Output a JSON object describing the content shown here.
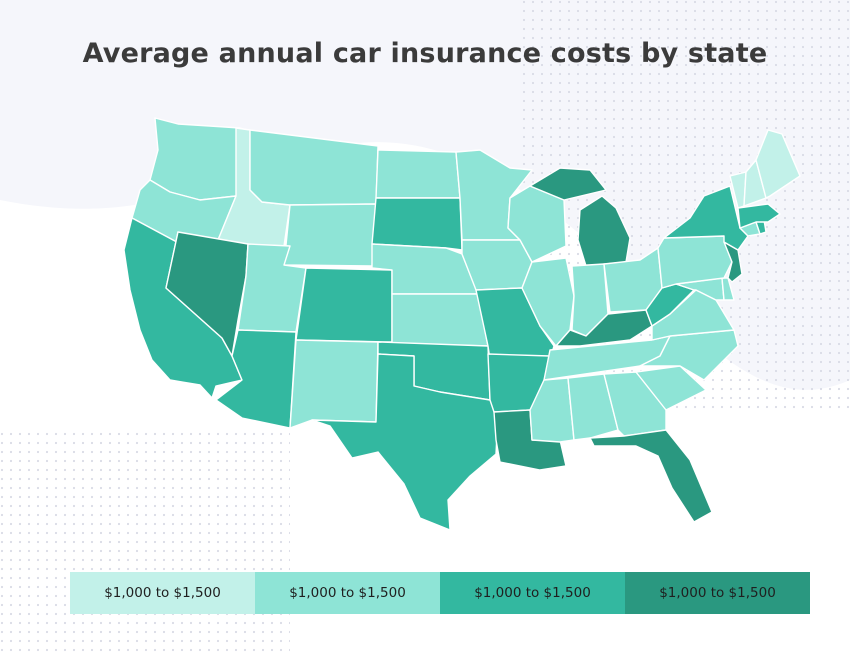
{
  "title": "Average annual car insurance costs by state",
  "colors": {
    "tier1": "#c2f1e9",
    "tier2": "#8ee4d6",
    "tier3": "#33b8a0",
    "tier4": "#2a9880",
    "background_dots": "#d9dbe6",
    "background_blob": "#f5f6fb"
  },
  "legend": [
    {
      "label": "$1,000 to $1,500",
      "color": "#c2f1e9"
    },
    {
      "label": "$1,000 to $1,500",
      "color": "#8ee4d6"
    },
    {
      "label": "$1,000 to $1,500",
      "color": "#33b8a0"
    },
    {
      "label": "$1,000 to $1,500",
      "color": "#2a9880"
    }
  ],
  "states": [
    {
      "id": "WA",
      "name": "Washington",
      "tier": 2
    },
    {
      "id": "OR",
      "name": "Oregon",
      "tier": 2
    },
    {
      "id": "CA",
      "name": "California",
      "tier": 3
    },
    {
      "id": "ID",
      "name": "Idaho",
      "tier": 1
    },
    {
      "id": "NV",
      "name": "Nevada",
      "tier": 4
    },
    {
      "id": "MT",
      "name": "Montana",
      "tier": 2
    },
    {
      "id": "WY",
      "name": "Wyoming",
      "tier": 2
    },
    {
      "id": "UT",
      "name": "Utah",
      "tier": 2
    },
    {
      "id": "AZ",
      "name": "Arizona",
      "tier": 3
    },
    {
      "id": "CO",
      "name": "Colorado",
      "tier": 3
    },
    {
      "id": "NM",
      "name": "New Mexico",
      "tier": 2
    },
    {
      "id": "ND",
      "name": "North Dakota",
      "tier": 2
    },
    {
      "id": "SD",
      "name": "South Dakota",
      "tier": 3
    },
    {
      "id": "NE",
      "name": "Nebraska",
      "tier": 2
    },
    {
      "id": "KS",
      "name": "Kansas",
      "tier": 2
    },
    {
      "id": "OK",
      "name": "Oklahoma",
      "tier": 3
    },
    {
      "id": "TX",
      "name": "Texas",
      "tier": 3
    },
    {
      "id": "MN",
      "name": "Minnesota",
      "tier": 2
    },
    {
      "id": "IA",
      "name": "Iowa",
      "tier": 2
    },
    {
      "id": "MO",
      "name": "Missouri",
      "tier": 3
    },
    {
      "id": "AR",
      "name": "Arkansas",
      "tier": 3
    },
    {
      "id": "LA",
      "name": "Louisiana",
      "tier": 4
    },
    {
      "id": "WI",
      "name": "Wisconsin",
      "tier": 2
    },
    {
      "id": "IL",
      "name": "Illinois",
      "tier": 2
    },
    {
      "id": "MI",
      "name": "Michigan",
      "tier": 4
    },
    {
      "id": "IN",
      "name": "Indiana",
      "tier": 2
    },
    {
      "id": "OH",
      "name": "Ohio",
      "tier": 2
    },
    {
      "id": "KY",
      "name": "Kentucky",
      "tier": 4
    },
    {
      "id": "TN",
      "name": "Tennessee",
      "tier": 2
    },
    {
      "id": "MS",
      "name": "Mississippi",
      "tier": 2
    },
    {
      "id": "AL",
      "name": "Alabama",
      "tier": 2
    },
    {
      "id": "GA",
      "name": "Georgia",
      "tier": 2
    },
    {
      "id": "FL",
      "name": "Florida",
      "tier": 4
    },
    {
      "id": "SC",
      "name": "South Carolina",
      "tier": 2
    },
    {
      "id": "NC",
      "name": "North Carolina",
      "tier": 2
    },
    {
      "id": "VA",
      "name": "Virginia",
      "tier": 2
    },
    {
      "id": "WV",
      "name": "West Virginia",
      "tier": 3
    },
    {
      "id": "MD",
      "name": "Maryland",
      "tier": 2
    },
    {
      "id": "DE",
      "name": "Delaware",
      "tier": 2
    },
    {
      "id": "PA",
      "name": "Pennsylvania",
      "tier": 2
    },
    {
      "id": "NJ",
      "name": "New Jersey",
      "tier": 4
    },
    {
      "id": "NY",
      "name": "New York",
      "tier": 3
    },
    {
      "id": "CT",
      "name": "Connecticut",
      "tier": 2
    },
    {
      "id": "RI",
      "name": "Rhode Island",
      "tier": 3
    },
    {
      "id": "MA",
      "name": "Massachusetts",
      "tier": 3
    },
    {
      "id": "VT",
      "name": "Vermont",
      "tier": 1
    },
    {
      "id": "NH",
      "name": "New Hampshire",
      "tier": 1
    },
    {
      "id": "ME",
      "name": "Maine",
      "tier": 1
    }
  ]
}
